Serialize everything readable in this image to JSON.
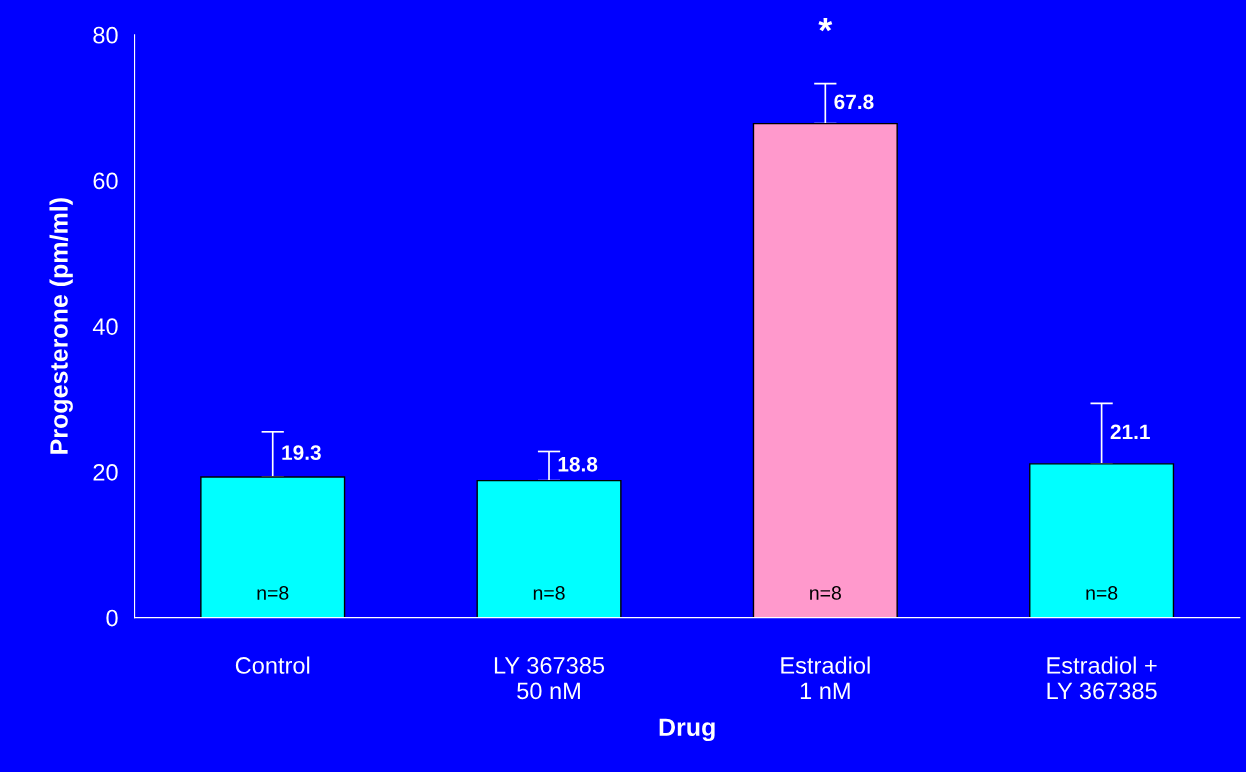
{
  "chart_data": {
    "type": "bar",
    "xlabel": "Drug",
    "ylabel": "Progesterone (pm/ml)",
    "categories": [
      "Control",
      "LY 367385\n50 nM",
      "Estradiol\n1 nM",
      "Estradiol +\nLY 367385"
    ],
    "values": [
      19.3,
      18.8,
      67.8,
      21.1
    ],
    "colors": [
      "#00ffff",
      "#00ffff",
      "#ff99cc",
      "#00ffff"
    ],
    "errors": [
      [
        19.3,
        25.5
      ],
      [
        18.8,
        22.8
      ],
      [
        67.8,
        73.3
      ],
      [
        21.1,
        29.4
      ]
    ],
    "data_labels": true,
    "ylim": [
      0,
      80
    ],
    "yticks": [
      0,
      20,
      40,
      60,
      80
    ],
    "grid": false,
    "legend": false,
    "annotations": [
      {
        "text": "n=8",
        "x": "Control",
        "y": 0
      },
      {
        "text": "n=8",
        "x": "LY 367385\n50 nM",
        "y": 0
      },
      {
        "text": "n=8",
        "x": "Estradiol\n1 nM",
        "y": 0
      },
      {
        "text": "n=8",
        "x": "Estradiol +\nLY 367385",
        "y": 0
      },
      {
        "text": "*",
        "x": "Estradiol\n1 nM",
        "y": 73.3
      }
    ]
  }
}
